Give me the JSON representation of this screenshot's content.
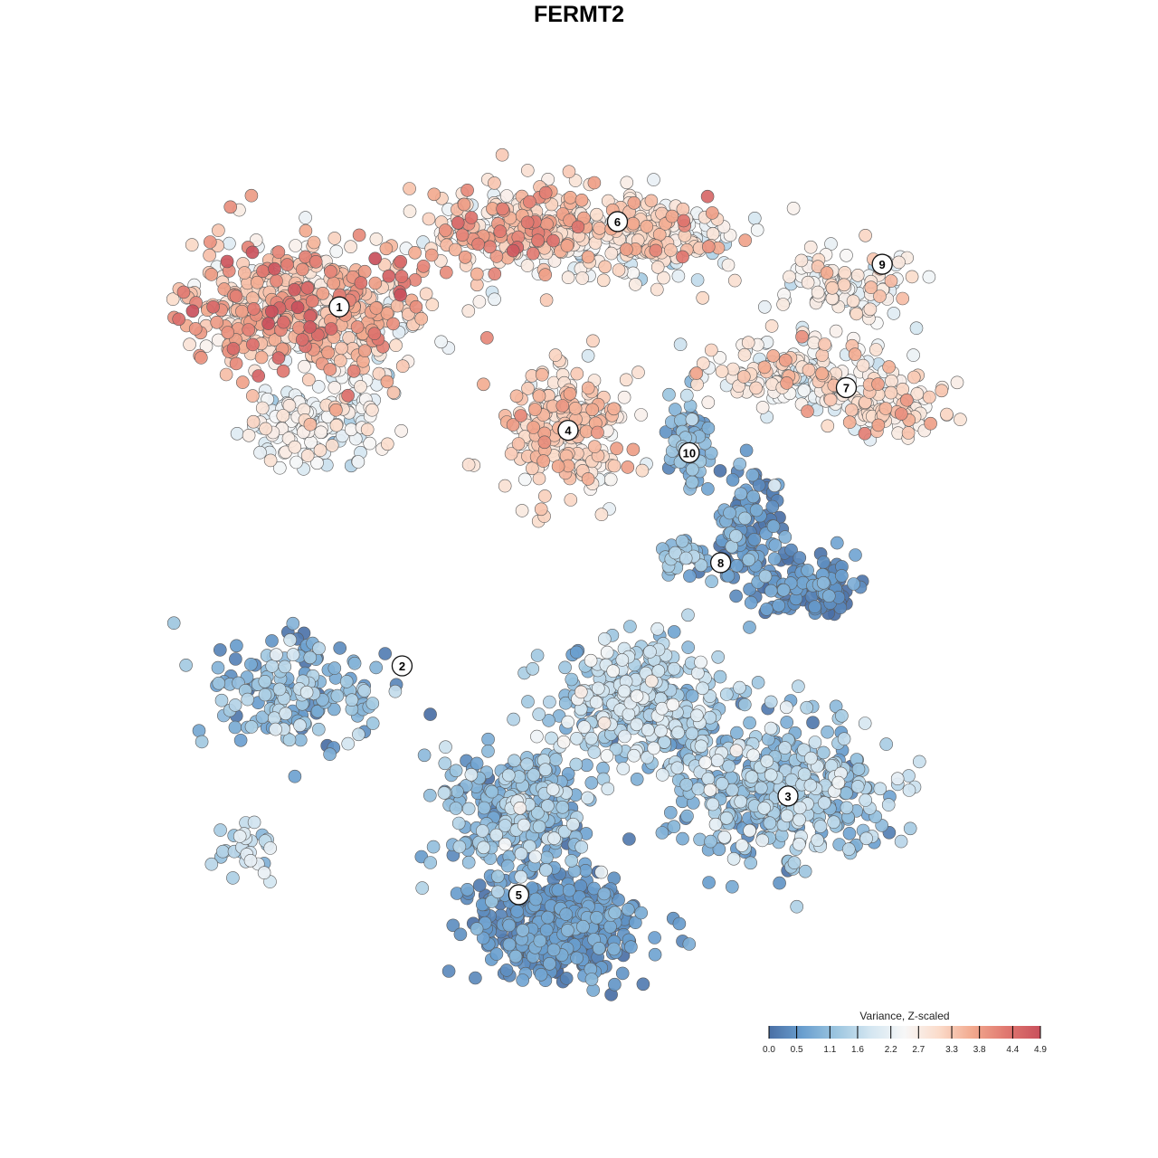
{
  "chart_data": {
    "type": "scatter",
    "title": "FERMT2",
    "xlabel": "",
    "ylabel": "",
    "axes_visible": false,
    "grid": false,
    "legend_placement": "bottom-right",
    "colorbar": {
      "title": "Variance, Z-scaled",
      "ticks": [
        "0.0",
        "0.5",
        "1.1",
        "1.6",
        "2.2",
        "2.7",
        "3.3",
        "3.8",
        "4.4",
        "4.9"
      ],
      "tick_values": [
        0.0,
        0.5,
        1.1,
        1.6,
        2.2,
        2.7,
        3.3,
        3.8,
        4.4,
        4.9
      ],
      "range": [
        0.0,
        4.9
      ],
      "colors": [
        "#4a6fa5",
        "#6a9fcf",
        "#9dc6e0",
        "#d4e6f1",
        "#f7f7f7",
        "#fbdccb",
        "#f2a98e",
        "#e07870",
        "#c9505c"
      ]
    },
    "clusters": [
      {
        "label": "1",
        "x": -10.0,
        "y": 11.0,
        "mean_value": 3.4
      },
      {
        "label": "2",
        "x": -7.2,
        "y": -5.0,
        "mean_value": 0.9
      },
      {
        "label": "3",
        "x": 10.0,
        "y": -10.8,
        "mean_value": 1.2
      },
      {
        "label": "4",
        "x": 0.2,
        "y": 5.5,
        "mean_value": 3.0
      },
      {
        "label": "5",
        "x": -2.0,
        "y": -15.2,
        "mean_value": 0.6
      },
      {
        "label": "6",
        "x": 2.4,
        "y": 14.8,
        "mean_value": 2.9
      },
      {
        "label": "7",
        "x": 12.6,
        "y": 7.4,
        "mean_value": 2.6
      },
      {
        "label": "8",
        "x": 7.0,
        "y": -0.4,
        "mean_value": 0.4
      },
      {
        "label": "9",
        "x": 14.2,
        "y": 12.9,
        "mean_value": 2.8
      },
      {
        "label": "10",
        "x": 5.6,
        "y": 4.5,
        "mean_value": 0.7
      }
    ],
    "point_groups": [
      {
        "cluster": "1",
        "cx": -11.5,
        "cy": 11.0,
        "sx": 5.0,
        "sy": 2.8,
        "n": 520,
        "mean_value": 3.3,
        "sd_value": 0.7
      },
      {
        "cluster": "1",
        "cx": -11.0,
        "cy": 6.0,
        "sx": 2.8,
        "sy": 2.0,
        "n": 160,
        "mean_value": 2.3,
        "sd_value": 0.5
      },
      {
        "cluster": "6",
        "cx": -2.0,
        "cy": 14.5,
        "sx": 4.0,
        "sy": 1.9,
        "n": 280,
        "mean_value": 3.2,
        "sd_value": 0.6
      },
      {
        "cluster": "6",
        "cx": 4.0,
        "cy": 14.0,
        "sx": 3.6,
        "sy": 1.8,
        "n": 220,
        "mean_value": 2.7,
        "sd_value": 0.6
      },
      {
        "cluster": "4",
        "cx": 0.0,
        "cy": 5.5,
        "sx": 2.4,
        "sy": 2.8,
        "n": 230,
        "mean_value": 3.0,
        "sd_value": 0.5
      },
      {
        "cluster": "9",
        "cx": 12.6,
        "cy": 12.0,
        "sx": 3.0,
        "sy": 1.4,
        "n": 110,
        "mean_value": 2.5,
        "sd_value": 0.5
      },
      {
        "cluster": "7",
        "cx": 10.6,
        "cy": 8.0,
        "sx": 4.0,
        "sy": 1.6,
        "n": 190,
        "mean_value": 2.6,
        "sd_value": 0.5
      },
      {
        "cluster": "7",
        "cx": 14.6,
        "cy": 6.4,
        "sx": 2.2,
        "sy": 1.1,
        "n": 90,
        "mean_value": 2.9,
        "sd_value": 0.5
      },
      {
        "cluster": "10",
        "cx": 5.6,
        "cy": 4.8,
        "sx": 0.9,
        "sy": 1.9,
        "n": 60,
        "mean_value": 0.8,
        "sd_value": 0.4
      },
      {
        "cluster": "8",
        "cx": 8.2,
        "cy": 1.2,
        "sx": 1.5,
        "sy": 2.4,
        "n": 120,
        "mean_value": 0.5,
        "sd_value": 0.4
      },
      {
        "cluster": "8",
        "cx": 10.8,
        "cy": -1.5,
        "sx": 2.0,
        "sy": 1.2,
        "n": 110,
        "mean_value": 0.3,
        "sd_value": 0.3
      },
      {
        "cluster": "8",
        "cx": 5.4,
        "cy": -0.2,
        "sx": 1.2,
        "sy": 0.6,
        "n": 40,
        "mean_value": 0.9,
        "sd_value": 0.4
      },
      {
        "cluster": "3",
        "cx": 3.5,
        "cy": -6.5,
        "sx": 3.4,
        "sy": 2.6,
        "n": 330,
        "mean_value": 1.4,
        "sd_value": 0.5
      },
      {
        "cluster": "3",
        "cx": 9.5,
        "cy": -10.5,
        "sx": 4.2,
        "sy": 2.8,
        "n": 420,
        "mean_value": 1.2,
        "sd_value": 0.5
      },
      {
        "cluster": "2",
        "cx": -11.8,
        "cy": -6.2,
        "sx": 3.4,
        "sy": 2.3,
        "n": 170,
        "mean_value": 1.0,
        "sd_value": 0.5
      },
      {
        "cluster": "2",
        "cx": -14.2,
        "cy": -13.2,
        "sx": 1.7,
        "sy": 0.9,
        "n": 30,
        "mean_value": 1.5,
        "sd_value": 0.5
      },
      {
        "cluster": "5",
        "cx": -2.0,
        "cy": -11.5,
        "sx": 3.0,
        "sy": 2.6,
        "n": 280,
        "mean_value": 1.0,
        "sd_value": 0.5
      },
      {
        "cluster": "5",
        "cx": -0.2,
        "cy": -16.8,
        "sx": 3.4,
        "sy": 2.1,
        "n": 420,
        "mean_value": 0.4,
        "sd_value": 0.3
      }
    ]
  }
}
